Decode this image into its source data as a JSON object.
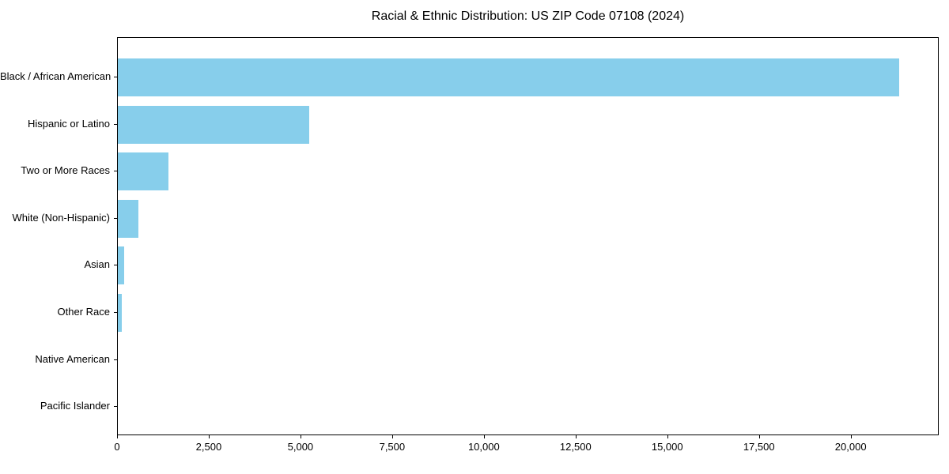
{
  "chart_data": {
    "type": "bar",
    "orientation": "horizontal",
    "title": "Racial & Ethnic Distribution: US ZIP Code 07108 (2024)",
    "categories": [
      "Black / African American",
      "Hispanic or Latino",
      "Two or More Races",
      "White (Non-Hispanic)",
      "Asian",
      "Other Race",
      "Native American",
      "Pacific Islander"
    ],
    "values": [
      21300,
      5220,
      1380,
      560,
      165,
      100,
      0,
      0
    ],
    "xlabel": "",
    "ylabel": "",
    "xlim": [
      0,
      22400
    ],
    "x_ticks": [
      0,
      2500,
      5000,
      7500,
      10000,
      12500,
      15000,
      17500,
      20000
    ],
    "x_tick_labels": [
      "0",
      "2,500",
      "5,000",
      "7,500",
      "10,000",
      "12,500",
      "15,000",
      "17,500",
      "20,000"
    ],
    "grid": false,
    "legend": "none",
    "bar_color": "#87CEEB",
    "axis_color": "#000000",
    "text_color": "#000000",
    "background_color": "#FFFFFF"
  }
}
